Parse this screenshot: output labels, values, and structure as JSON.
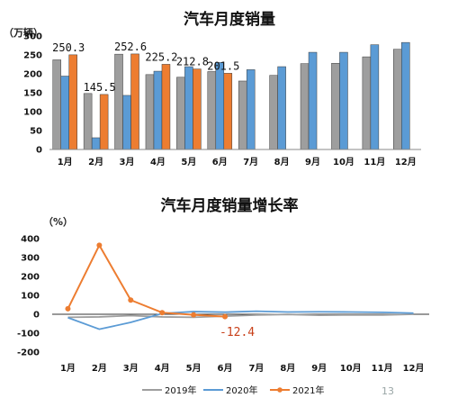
{
  "page_number": "13",
  "colors": {
    "s2019": "#9e9e9e",
    "s2020": "#5b9bd5",
    "s2021": "#ed7d31"
  },
  "chart_data": [
    {
      "type": "bar",
      "title": "汽车月度销量",
      "unit_label": "（万辆）",
      "categories": [
        "1月",
        "2月",
        "3月",
        "4月",
        "5月",
        "6月",
        "7月",
        "8月",
        "9月",
        "10月",
        "11月",
        "12月"
      ],
      "ylim": [
        0,
        300
      ],
      "yticks": [
        "0",
        "50",
        "100",
        "150",
        "200",
        "250",
        "300"
      ],
      "grid": false,
      "legend_position": "bottom",
      "series": [
        {
          "name": "2019年",
          "color": "#9e9e9e",
          "values": [
            237,
            148,
            252,
            198,
            191,
            206,
            181,
            196,
            227,
            228,
            245,
            265
          ]
        },
        {
          "name": "2020年",
          "color": "#5b9bd5",
          "values": [
            194,
            31,
            143,
            207,
            219,
            230,
            211,
            219,
            257,
            257,
            277,
            283
          ]
        },
        {
          "name": "2021年",
          "color": "#ed7d31",
          "values": [
            250.3,
            145.5,
            252.6,
            225.2,
            212.8,
            201.5,
            null,
            null,
            null,
            null,
            null,
            null
          ]
        }
      ],
      "data_labels": [
        "250.3",
        "145.5",
        "252.6",
        "225.2",
        "212.8",
        "201.5"
      ]
    },
    {
      "type": "line",
      "title": "汽车月度销量增长率",
      "unit_label": "（%）",
      "categories": [
        "1月",
        "2月",
        "3月",
        "4月",
        "5月",
        "6月",
        "7月",
        "8月",
        "9月",
        "10月",
        "11月",
        "12月"
      ],
      "ylim": [
        -200,
        400
      ],
      "yticks": [
        "400",
        "300",
        "200",
        "100",
        "0",
        "-100",
        "-200"
      ],
      "grid": false,
      "legend_position": "bottom",
      "series": [
        {
          "name": "2019年",
          "color": "#9e9e9e",
          "values": [
            -16,
            -14,
            -7,
            -14,
            -16,
            -10,
            -4,
            -1,
            -5,
            -4,
            -4,
            0
          ]
        },
        {
          "name": "2020年",
          "color": "#5b9bd5",
          "values": [
            -18,
            -79,
            -43,
            4,
            14,
            11,
            16,
            12,
            13,
            12,
            10,
            6
          ]
        },
        {
          "name": "2021年",
          "color": "#ed7d31",
          "values": [
            29,
            365,
            75,
            8.6,
            -3,
            -12.4,
            null,
            null,
            null,
            null,
            null,
            null
          ]
        }
      ],
      "annotation": "-12.4"
    }
  ]
}
